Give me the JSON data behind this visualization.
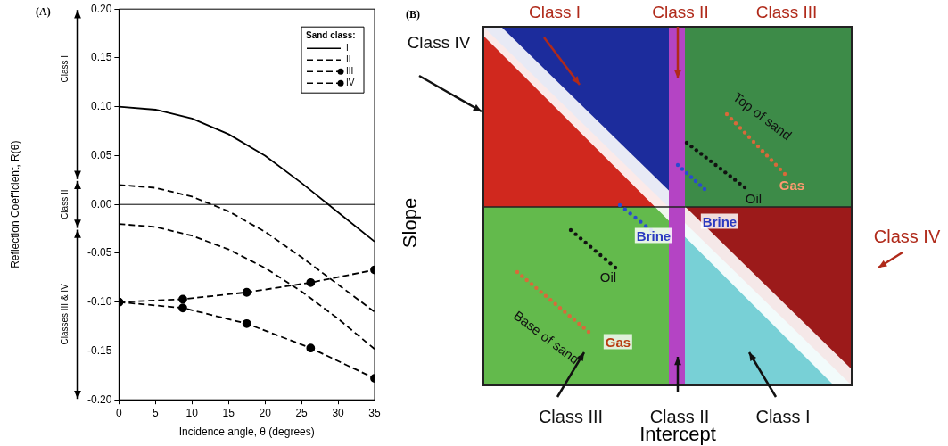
{
  "chart_data": [
    {
      "type": "line",
      "title": "(A)",
      "xlabel": "Incidence angle, θ (degrees)",
      "ylabel": "Reflection Coefficient, R(θ)",
      "legend_title": "Sand class:",
      "legend": "top right",
      "grid": false,
      "xlim": [
        0,
        35
      ],
      "xticks": [
        0,
        5,
        10,
        15,
        20,
        25,
        30,
        35
      ],
      "ylim": [
        -0.2,
        0.2
      ],
      "yticks": [
        {
          "value": -0.2,
          "label": "-0.20"
        },
        {
          "value": -0.15,
          "label": "-0.15"
        },
        {
          "value": -0.1,
          "label": "-0.10"
        },
        {
          "value": -0.05,
          "label": "-0.05"
        },
        {
          "value": 0,
          "label": "0.00"
        },
        {
          "value": 0.05,
          "label": "0.05"
        },
        {
          "value": 0.1,
          "label": "0.10"
        },
        {
          "value": 0.15,
          "label": "0.15"
        },
        {
          "value": 0.2,
          "label": "0.20"
        }
      ],
      "ref_lines": [
        {
          "axis": "y",
          "value": 0
        }
      ],
      "annotations": [
        "Class I",
        "Class II",
        "Classes III & IV"
      ],
      "series": [
        {
          "name": "I",
          "color": "#000000",
          "line_style": "solid",
          "marker": "none",
          "x": [
            0,
            5,
            10,
            15,
            20,
            25,
            30,
            35
          ],
          "values": [
            0.1,
            0.097,
            0.088,
            0.072,
            0.05,
            0.022,
            -0.008,
            -0.038
          ]
        },
        {
          "name": "II",
          "color": "#000000",
          "line_style": "dashed",
          "marker": "none",
          "x": [
            0,
            5,
            10,
            15,
            20,
            25,
            30,
            35
          ],
          "values": [
            0.02,
            0.017,
            0.008,
            -0.007,
            -0.028,
            -0.054,
            -0.082,
            -0.11
          ]
        },
        {
          "color": "#000000",
          "line_style": "dashed",
          "marker": "none",
          "x": [
            0,
            5,
            10,
            15,
            20,
            25,
            30,
            35
          ],
          "values": [
            -0.02,
            -0.023,
            -0.032,
            -0.046,
            -0.065,
            -0.089,
            -0.117,
            -0.148
          ]
        },
        {
          "name": "III",
          "color": "#000000",
          "line_style": "dashed",
          "marker": "circle",
          "x": [
            0,
            8.75,
            17.5,
            26.25,
            35
          ],
          "values": [
            -0.1,
            -0.106,
            -0.122,
            -0.147,
            -0.178
          ]
        },
        {
          "name": "IV",
          "color": "#000000",
          "line_style": "dashed",
          "marker": "circle",
          "x": [
            0,
            8.75,
            17.5,
            26.25,
            35
          ],
          "values": [
            -0.1,
            -0.097,
            -0.09,
            -0.08,
            -0.067
          ]
        }
      ]
    },
    {
      "type": "other",
      "title": "(B)",
      "xlabel": "Intercept",
      "ylabel": "Slope",
      "annotations": [
        "Class I",
        "Class II",
        "Class III",
        "Class IV",
        "Top of sand",
        "Gas",
        "Oil",
        "Brine",
        "Brine",
        "Oil",
        "Base of sand",
        "Gas",
        "Class IV",
        "Class III",
        "Class II",
        "Class I"
      ]
    }
  ]
}
